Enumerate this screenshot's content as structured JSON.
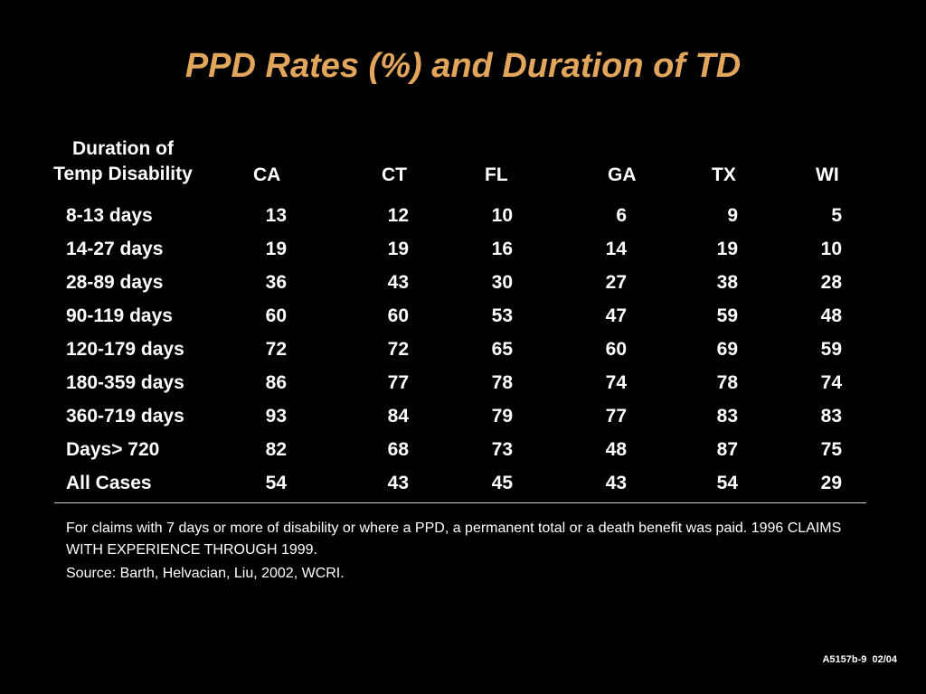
{
  "title": "PPD Rates (%) and Duration of TD",
  "colors": {
    "background": "#000000",
    "title": "#e2a55c",
    "text": "#ffffff",
    "rule": "#cfcfcf"
  },
  "table": {
    "header": {
      "duration_line1": "Duration of",
      "duration_line2": "Temp Disability",
      "states": [
        "CA",
        "CT",
        "FL",
        "GA",
        "TX",
        "WI"
      ]
    },
    "rows": [
      {
        "label": "8-13 days",
        "values": [
          "13",
          "12",
          "10",
          "6",
          "9",
          "5"
        ]
      },
      {
        "label": "14-27 days",
        "values": [
          "19",
          "19",
          "16",
          "14",
          "19",
          "10"
        ]
      },
      {
        "label": "28-89 days",
        "values": [
          "36",
          "43",
          "30",
          "27",
          "38",
          "28"
        ]
      },
      {
        "label": "90-119 days",
        "values": [
          "60",
          "60",
          "53",
          "47",
          "59",
          "48"
        ]
      },
      {
        "label": "120-179 days",
        "values": [
          "72",
          "72",
          "65",
          "60",
          "69",
          "59"
        ]
      },
      {
        "label": "180-359 days",
        "values": [
          "86",
          "77",
          "78",
          "74",
          "78",
          "74"
        ]
      },
      {
        "label": "360-719 days",
        "values": [
          "93",
          "84",
          "79",
          "77",
          "83",
          "83"
        ]
      },
      {
        "label": "Days> 720",
        "values": [
          "82",
          "68",
          "73",
          "48",
          "87",
          "75"
        ]
      },
      {
        "label": "All Cases",
        "values": [
          "54",
          "43",
          "45",
          "43",
          "54",
          "29"
        ]
      }
    ]
  },
  "notes": {
    "note": "For claims with 7 days or more of disability or where a PPD, a permanent total or a death benefit was paid. 1996 CLAIMS WITH EXPERIENCE THROUGH 1999.",
    "source": "Source: Barth, Helvacian, Liu, 2002, WCRI."
  },
  "slide_code": "A5157b-9  02/04"
}
